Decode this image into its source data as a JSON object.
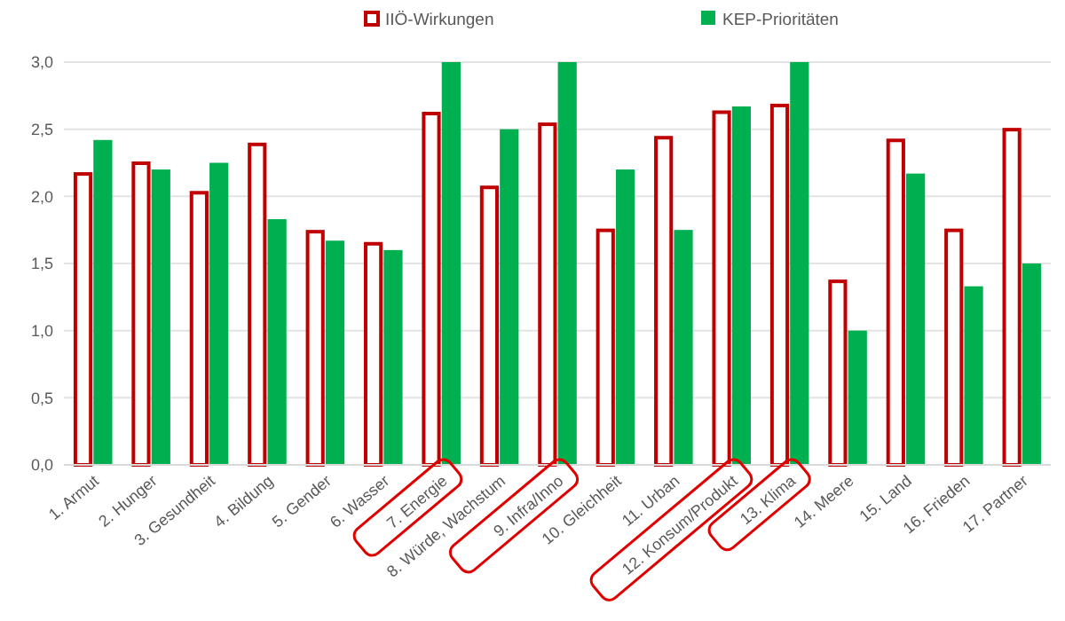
{
  "chart_data": {
    "type": "bar",
    "categories": [
      "1. Armut",
      "2. Hunger",
      "3. Gesundheit",
      "4. Bildung",
      "5. Gender",
      "6. Wasser",
      "7. Energie",
      "8. Würde, Wachstum",
      "9. Infra/Inno",
      "10. Gleichheit",
      "11. Urban",
      "12. Konsum/Produkt",
      "13. Klima",
      "14. Meere",
      "15. Land",
      "16. Frieden",
      "17. Partner"
    ],
    "series": [
      {
        "name": "IIÖ-Wirkungen",
        "color": "#c00000",
        "values": [
          2.18,
          2.26,
          2.04,
          2.4,
          1.75,
          1.66,
          2.63,
          2.08,
          2.55,
          1.76,
          2.45,
          2.64,
          2.69,
          1.38,
          2.43,
          1.76,
          2.51
        ]
      },
      {
        "name": "KEP-Prioritäten",
        "color": "#00b050",
        "values": [
          2.42,
          2.2,
          2.25,
          1.83,
          1.67,
          1.6,
          3.0,
          2.5,
          3.0,
          2.2,
          1.75,
          2.67,
          3.0,
          1.0,
          2.17,
          1.33,
          1.5
        ]
      }
    ],
    "ylim": [
      0,
      3
    ],
    "yticks": [
      {
        "value": 0,
        "label": "0,0"
      },
      {
        "value": 0.5,
        "label": "0,5"
      },
      {
        "value": 1,
        "label": "1,0"
      },
      {
        "value": 1.5,
        "label": "1,5"
      },
      {
        "value": 2,
        "label": "2,0"
      },
      {
        "value": 2.5,
        "label": "2,5"
      },
      {
        "value": 3,
        "label": "3,0"
      }
    ],
    "grid": "y",
    "legend": "top"
  }
}
